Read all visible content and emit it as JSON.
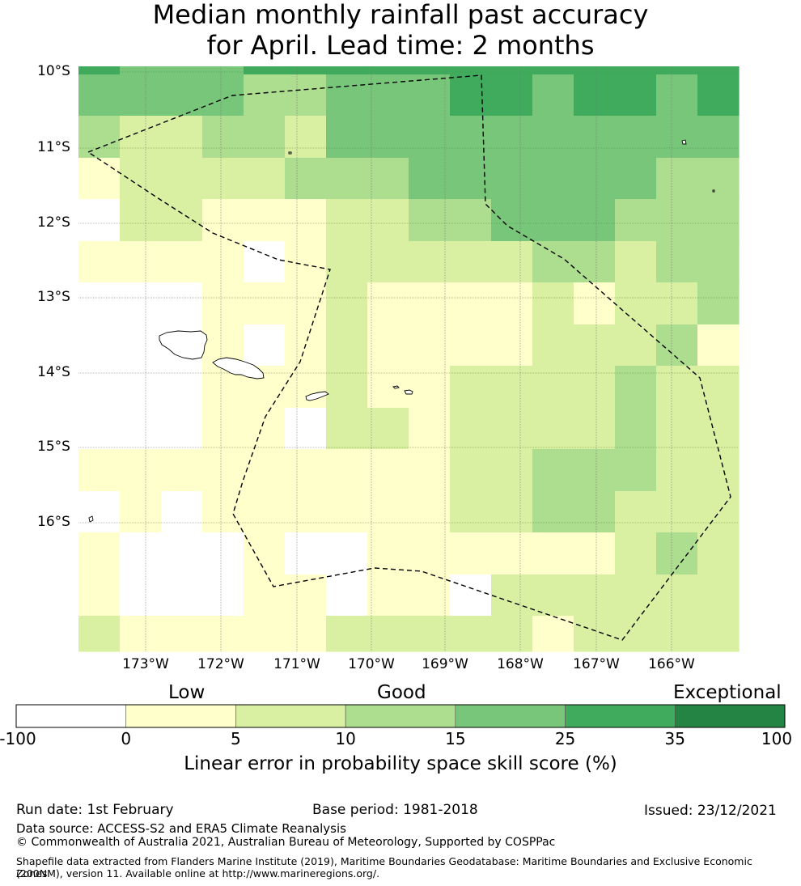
{
  "title_line1": "Median monthly rainfall past accuracy",
  "title_line2": "for April. Lead time: 2 months",
  "lat_labels": [
    "10°S",
    "11°S",
    "12°S",
    "13°S",
    "14°S",
    "15°S",
    "16°S"
  ],
  "lon_labels": [
    "173°W",
    "172°W",
    "171°W",
    "170°W",
    "169°W",
    "168°W",
    "167°W",
    "166°W"
  ],
  "colorbar": {
    "categories": [
      "Low",
      "Good",
      "Exceptional"
    ],
    "ticks": [
      "-100",
      "0",
      "5",
      "10",
      "15",
      "25",
      "35",
      "100"
    ],
    "colors": [
      "#ffffff",
      "#ffffcc",
      "#d9f0a3",
      "#addd8e",
      "#78c679",
      "#41ab5d",
      "#238443"
    ],
    "title": "Linear error in probability space skill score (%)"
  },
  "skill_grid": [
    [
      "25-35",
      "15-25",
      "15-25",
      "15-25",
      "25-35",
      "25-35",
      "25-35",
      "25-35",
      "25-35",
      "25-35",
      "25-35",
      "25-35",
      "25-35",
      "25-35",
      "25-35",
      "25-35"
    ],
    [
      "15-25",
      "15-25",
      "15-25",
      "15-25",
      "10-15",
      "10-15",
      "15-25",
      "15-25",
      "15-25",
      "25-35",
      "25-35",
      "15-25",
      "25-35",
      "25-35",
      "15-25",
      "25-35"
    ],
    [
      "10-15",
      "5-10",
      "5-10",
      "10-15",
      "10-15",
      "5-10",
      "15-25",
      "15-25",
      "15-25",
      "15-25",
      "15-25",
      "15-25",
      "15-25",
      "15-25",
      "15-25",
      "15-25"
    ],
    [
      "0-5",
      "5-10",
      "5-10",
      "5-10",
      "5-10",
      "10-15",
      "10-15",
      "10-15",
      "15-25",
      "15-25",
      "15-25",
      "15-25",
      "15-25",
      "15-25",
      "10-15",
      "10-15"
    ],
    [
      "<0",
      "5-10",
      "5-10",
      "0-5",
      "0-5",
      "0-5",
      "5-10",
      "5-10",
      "10-15",
      "10-15",
      "15-25",
      "15-25",
      "15-25",
      "10-15",
      "10-15",
      "10-15"
    ],
    [
      "0-5",
      "0-5",
      "0-5",
      "0-5",
      "<0",
      "0-5",
      "5-10",
      "5-10",
      "5-10",
      "5-10",
      "5-10",
      "10-15",
      "10-15",
      "5-10",
      "10-15",
      "10-15"
    ],
    [
      "<0",
      "<0",
      "<0",
      "0-5",
      "0-5",
      "0-5",
      "5-10",
      "0-5",
      "0-5",
      "0-5",
      "0-5",
      "5-10",
      "0-5",
      "5-10",
      "5-10",
      "10-15"
    ],
    [
      "<0",
      "<0",
      "<0",
      "0-5",
      "<0",
      "0-5",
      "5-10",
      "0-5",
      "0-5",
      "0-5",
      "0-5",
      "5-10",
      "5-10",
      "5-10",
      "10-15",
      "0-5"
    ],
    [
      "<0",
      "<0",
      "<0",
      "0-5",
      "0-5",
      "0-5",
      "5-10",
      "0-5",
      "0-5",
      "5-10",
      "5-10",
      "5-10",
      "5-10",
      "10-15",
      "5-10",
      "5-10"
    ],
    [
      "<0",
      "<0",
      "<0",
      "0-5",
      "0-5",
      "<0",
      "5-10",
      "5-10",
      "0-5",
      "5-10",
      "5-10",
      "5-10",
      "5-10",
      "10-15",
      "5-10",
      "5-10"
    ],
    [
      "0-5",
      "0-5",
      "0-5",
      "0-5",
      "0-5",
      "0-5",
      "0-5",
      "0-5",
      "0-5",
      "5-10",
      "5-10",
      "10-15",
      "10-15",
      "10-15",
      "5-10",
      "5-10"
    ],
    [
      "<0",
      "0-5",
      "<0",
      "0-5",
      "0-5",
      "0-5",
      "0-5",
      "0-5",
      "0-5",
      "5-10",
      "5-10",
      "10-15",
      "10-15",
      "5-10",
      "5-10",
      "5-10"
    ],
    [
      "0-5",
      "<0",
      "<0",
      "<0",
      "0-5",
      "<0",
      "<0",
      "0-5",
      "0-5",
      "0-5",
      "0-5",
      "0-5",
      "0-5",
      "5-10",
      "10-15",
      "5-10"
    ],
    [
      "0-5",
      "<0",
      "<0",
      "<0",
      "0-5",
      "0-5",
      "<0",
      "0-5",
      "0-5",
      "<0",
      "5-10",
      "5-10",
      "5-10",
      "5-10",
      "5-10",
      "5-10"
    ],
    [
      "5-10",
      "0-5",
      "0-5",
      "0-5",
      "0-5",
      "0-5",
      "5-10",
      "5-10",
      "5-10",
      "5-10",
      "5-10",
      "0-5",
      "5-10",
      "5-10",
      "5-10",
      "5-10"
    ]
  ],
  "footer": {
    "run_date": "Run date: 1st February",
    "base_period": "Base period: 1981-2018",
    "issued": "Issued: 23/12/2021",
    "data_source": "Data source: ACCESS-S2 and ERA5 Climate Reanalysis",
    "copyright": "© Commonwealth of Australia 2021, Australian Bureau of Meteorology, Supported by COSPPac",
    "shapefile_line1": "Shapefile data extracted from Flanders Marine Institute (2019), Maritime Boundaries Geodatabase: Maritime Boundaries and Exclusive Economic Zones",
    "shapefile_line2": "(200NM), version 11. Available online at http://www.marineregions.org/."
  }
}
